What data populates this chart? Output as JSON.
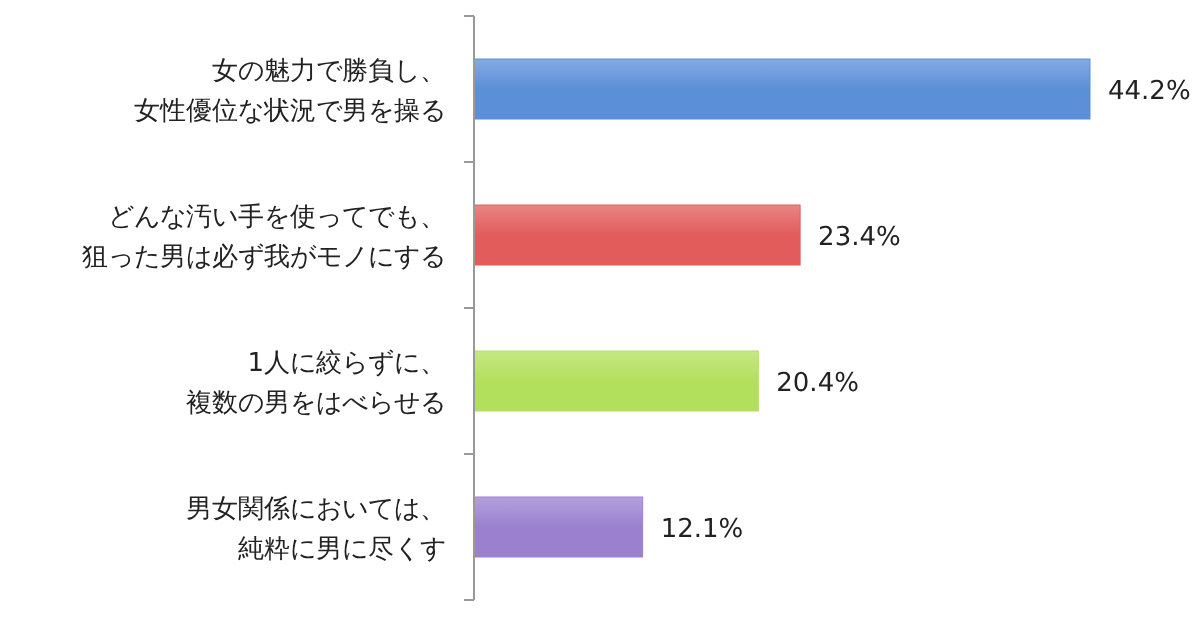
{
  "chart_data": {
    "type": "bar",
    "orientation": "horizontal",
    "categories": [
      "女の魅力で勝負し、女性優位な状況で男を操る",
      "どんな汚い手を使ってでも、狙った男は必ず我がモノにする",
      "1人に絞らずに、複数の男をはべらせる",
      "男女関係においては、純粋に男に尽くす"
    ],
    "values": [
      44.2,
      23.4,
      20.4,
      12.1
    ],
    "colors": [
      "#5b8fd8",
      "#e25c5c",
      "#b3e05c",
      "#9b80d0"
    ],
    "value_labels": [
      "44.2%",
      "23.4%",
      "20.4%",
      "12.1%"
    ]
  }
}
